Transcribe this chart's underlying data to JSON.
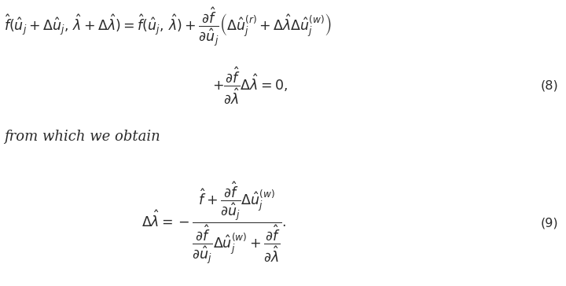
{
  "bg_color": "#ffffff",
  "text_color": "#2a2a2a",
  "eq8_line1": "$\\hat{f}(\\hat{u}_j + \\Delta\\hat{u}_j,\\, \\hat{\\lambda} + \\Delta\\hat{\\lambda}) = \\hat{f}(\\hat{u}_j,\\, \\hat{\\lambda}) + \\dfrac{\\partial\\hat{f}}{\\partial\\hat{u}_j}\\left(\\Delta\\hat{u}_j^{(r)} + \\Delta\\hat{\\lambda}\\Delta\\hat{u}_j^{(w)}\\right)$",
  "eq8_line2": "$+ \\dfrac{\\partial\\hat{f}}{\\partial\\hat{\\lambda}}\\Delta\\hat{\\lambda} = 0,$",
  "eq8_number": "(8)",
  "text_line": "from which we obtain",
  "eq9": "$\\Delta\\hat{\\lambda} = -\\dfrac{\\hat{f} + \\dfrac{\\partial\\hat{f}}{\\partial\\hat{u}_j}\\Delta\\hat{u}_j^{(w)}}{\\dfrac{\\partial\\hat{f}}{\\partial\\hat{u}_j}\\Delta\\hat{u}_j^{(w)} + \\dfrac{\\partial\\hat{f}}{\\partial\\hat{\\lambda}}}.$",
  "eq9_number": "(9)",
  "fontsize_eq": 12.5,
  "fontsize_text": 13,
  "fontsize_eq_num": 11.5
}
